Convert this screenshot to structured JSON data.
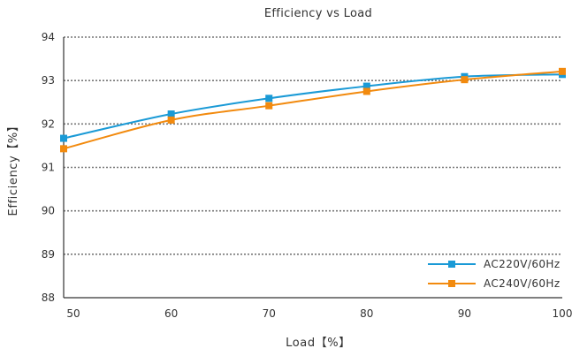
{
  "chart_data": {
    "type": "line",
    "title": "Efficiency vs Load",
    "xlabel": "Load【%】",
    "ylabel": "Efficiency【%】",
    "xlim": [
      49,
      100
    ],
    "ylim": [
      88,
      94
    ],
    "x_ticks": [
      "50",
      "60",
      "70",
      "80",
      "90",
      "100"
    ],
    "y_ticks": [
      "88",
      "89",
      "90",
      "91",
      "92",
      "93",
      "94"
    ],
    "grid": "horizontal dotted",
    "legend_position": "bottom-right",
    "series": [
      {
        "name": "AC220V/60Hz",
        "color": "#1a9ad6",
        "x": [
          49,
          60,
          70,
          80,
          90,
          100
        ],
        "y": [
          91.67,
          92.23,
          92.59,
          92.87,
          93.09,
          93.14
        ]
      },
      {
        "name": "AC240V/60Hz",
        "color": "#f28a0e",
        "x": [
          49,
          60,
          70,
          80,
          90,
          100
        ],
        "y": [
          91.43,
          92.09,
          92.42,
          92.75,
          93.02,
          93.21
        ]
      }
    ]
  }
}
